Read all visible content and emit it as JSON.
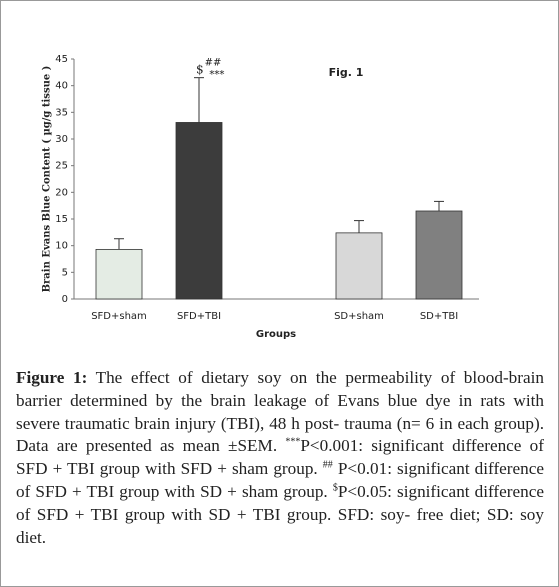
{
  "chart_data": {
    "type": "bar",
    "title": "Fig. 1",
    "categories": [
      "SFD+sham",
      "SFD+TBI",
      null,
      "SD+sham",
      "SD+TBI"
    ],
    "values": [
      9.3,
      33.1,
      null,
      12.4,
      16.5
    ],
    "errors": [
      2.0,
      8.4,
      null,
      2.3,
      1.8
    ],
    "colors": [
      "#e4ece4",
      "#3c3c3c",
      null,
      "#d8d8d8",
      "#808080"
    ],
    "ylim": [
      0,
      45
    ],
    "yticks": [
      0,
      5,
      10,
      15,
      20,
      25,
      30,
      35,
      40,
      45
    ],
    "xlabel": "Groups",
    "ylabel": "Brain Evans Blue Content ( µg/g tissue )",
    "annotations": [
      {
        "category": 1,
        "parts": [
          "$",
          "##",
          "***"
        ]
      }
    ]
  },
  "caption": {
    "label": "Figure 1:",
    "runs": [
      {
        "text": " The effect of dietary soy on the permeability of blood-brain barrier determined by the brain leakage of Evans blue dye in rats with severe traumatic brain injury (TBI), 48 h post- trauma (n= 6 in each group). Data are presented as mean ±SEM. "
      },
      {
        "text": "***",
        "style": "sup"
      },
      {
        "text": "P<0.001: significant difference of SFD + TBI group with SFD + sham group. "
      },
      {
        "text": "##",
        "style": "sup"
      },
      {
        "text": " P<0.01: significant difference of SFD + TBI group with SD + sham group. "
      },
      {
        "text": "$",
        "style": "sup"
      },
      {
        "text": "P<0.05: significant difference of SFD + TBI group with SD + TBI group. SFD: soy- free diet; SD: soy diet."
      }
    ]
  }
}
